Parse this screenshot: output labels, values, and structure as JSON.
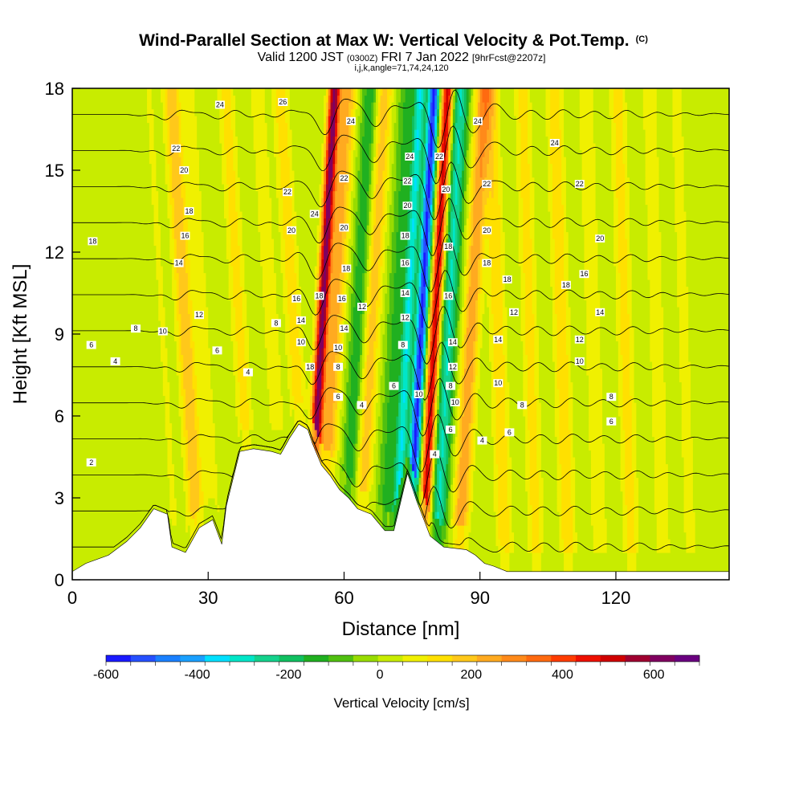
{
  "chart_data": {
    "type": "heatmap",
    "title": "Wind-Parallel Section at Max W: Vertical Velocity & Pot.Temp.",
    "title_mark": "(C)",
    "subtitle_parts": [
      "Valid 1200 JST",
      "(0300Z)",
      "FRI 7 Jan 2022",
      "[9hrFcst@2207z]"
    ],
    "subtitle2": "i,j,k,angle=71,74,24,120",
    "xlabel": "Distance [nm]",
    "ylabel": "Height [Kft MSL]",
    "xlim": [
      0,
      145
    ],
    "ylim": [
      0,
      18
    ],
    "x_ticks": [
      0,
      30,
      60,
      90,
      120
    ],
    "y_ticks": [
      0,
      3,
      6,
      9,
      12,
      15,
      18
    ],
    "colorbar": {
      "label": "Vertical Velocity [cm/s]",
      "min": -600,
      "max": 700,
      "ticks": [
        -600,
        -400,
        -200,
        0,
        200,
        400,
        600
      ],
      "colors": [
        "#1a1aff",
        "#2650ff",
        "#1a80ff",
        "#1aa0ff",
        "#00e0ff",
        "#00e6c8",
        "#14d28c",
        "#10c060",
        "#20b020",
        "#50c010",
        "#98dc00",
        "#c8ec00",
        "#f0f000",
        "#ffe000",
        "#ffc81a",
        "#ffaa20",
        "#ff8a1a",
        "#ff6a10",
        "#ff3c00",
        "#ee1000",
        "#d00000",
        "#a00030",
        "#800060",
        "#6a0080"
      ]
    },
    "wave_features": [
      {
        "x": 20,
        "w": 55
      },
      {
        "x": 25,
        "w": 210
      },
      {
        "x": 29,
        "w": 70
      },
      {
        "x": 37,
        "w": 130
      },
      {
        "x": 44,
        "w": 90
      },
      {
        "x": 49,
        "w": 140
      },
      {
        "x": 55,
        "w": 620
      },
      {
        "x": 58,
        "w": 230
      },
      {
        "x": 63,
        "w": -160
      },
      {
        "x": 66,
        "w": 200
      },
      {
        "x": 71,
        "w": -120
      },
      {
        "x": 74,
        "w": -320
      },
      {
        "x": 77,
        "w": -560
      },
      {
        "x": 80,
        "w": 520
      },
      {
        "x": 83,
        "w": -280
      },
      {
        "x": 88,
        "w": 260
      },
      {
        "x": 94,
        "w": 150
      },
      {
        "x": 101,
        "w": 130
      },
      {
        "x": 108,
        "w": 150
      },
      {
        "x": 115,
        "w": 100
      },
      {
        "x": 122,
        "w": 130
      },
      {
        "x": 129,
        "w": 90
      },
      {
        "x": 135,
        "w": 70
      },
      {
        "x": 141,
        "w": 40
      }
    ],
    "terrain": [
      [
        0,
        0.3
      ],
      [
        3,
        0.6
      ],
      [
        8,
        0.9
      ],
      [
        12,
        1.4
      ],
      [
        15,
        1.9
      ],
      [
        18,
        2.6
      ],
      [
        21,
        2.4
      ],
      [
        22,
        1.2
      ],
      [
        25,
        1.0
      ],
      [
        28,
        1.9
      ],
      [
        31,
        2.2
      ],
      [
        33,
        1.3
      ],
      [
        34,
        2.7
      ],
      [
        37,
        4.7
      ],
      [
        40,
        4.8
      ],
      [
        44,
        4.7
      ],
      [
        46,
        4.6
      ],
      [
        48,
        5.2
      ],
      [
        50,
        5.7
      ],
      [
        52,
        5.5
      ],
      [
        53,
        5.0
      ],
      [
        55,
        4.2
      ],
      [
        57,
        3.8
      ],
      [
        59,
        3.3
      ],
      [
        61,
        3.0
      ],
      [
        63,
        2.6
      ],
      [
        66,
        2.4
      ],
      [
        69,
        1.8
      ],
      [
        71,
        1.8
      ],
      [
        74,
        3.9
      ],
      [
        76,
        2.9
      ],
      [
        79,
        1.6
      ],
      [
        82,
        1.2
      ],
      [
        87,
        1.1
      ],
      [
        89,
        0.9
      ],
      [
        91,
        0.6
      ],
      [
        93,
        0.5
      ],
      [
        96,
        0.3
      ],
      [
        145,
        0.3
      ]
    ],
    "isentropes": [
      2,
      4,
      6,
      8,
      10,
      12,
      14,
      16,
      18,
      20,
      22,
      24,
      26
    ],
    "contour_labels": [
      {
        "text": "2",
        "x": 4.2,
        "y": 4.3
      },
      {
        "text": "4",
        "x": 9.5,
        "y": 8.0
      },
      {
        "text": "6",
        "x": 4.2,
        "y": 8.6
      },
      {
        "text": "8",
        "x": 14,
        "y": 9.2
      },
      {
        "text": "10",
        "x": 20,
        "y": 9.1
      },
      {
        "text": "12",
        "x": 28,
        "y": 9.7
      },
      {
        "text": "14",
        "x": 23.5,
        "y": 11.6
      },
      {
        "text": "16",
        "x": 24.9,
        "y": 12.6
      },
      {
        "text": "18",
        "x": 4.5,
        "y": 12.4
      },
      {
        "text": "18",
        "x": 25.8,
        "y": 13.5
      },
      {
        "text": "20",
        "x": 24.7,
        "y": 15.0
      },
      {
        "text": "22",
        "x": 22.9,
        "y": 15.8
      },
      {
        "text": "24",
        "x": 32.6,
        "y": 17.4
      },
      {
        "text": "26",
        "x": 46.5,
        "y": 17.5
      },
      {
        "text": "6",
        "x": 32,
        "y": 8.4
      },
      {
        "text": "4",
        "x": 38.8,
        "y": 7.6
      },
      {
        "text": "8",
        "x": 45,
        "y": 9.4
      },
      {
        "text": "16",
        "x": 49.5,
        "y": 10.3
      },
      {
        "text": "14",
        "x": 50.5,
        "y": 9.5
      },
      {
        "text": "10",
        "x": 50.5,
        "y": 8.7
      },
      {
        "text": "18",
        "x": 52.5,
        "y": 7.8
      },
      {
        "text": "20",
        "x": 48.4,
        "y": 12.8
      },
      {
        "text": "22",
        "x": 47.5,
        "y": 14.2
      },
      {
        "text": "24",
        "x": 53.5,
        "y": 13.4
      },
      {
        "text": "18",
        "x": 54.5,
        "y": 10.4
      },
      {
        "text": "16",
        "x": 59.5,
        "y": 10.3
      },
      {
        "text": "14",
        "x": 60,
        "y": 9.2
      },
      {
        "text": "12",
        "x": 64,
        "y": 10.0
      },
      {
        "text": "10",
        "x": 58.7,
        "y": 8.5
      },
      {
        "text": "8",
        "x": 58.7,
        "y": 7.8
      },
      {
        "text": "6",
        "x": 58.7,
        "y": 6.7
      },
      {
        "text": "4",
        "x": 63.9,
        "y": 6.4
      },
      {
        "text": "18",
        "x": 60.5,
        "y": 11.4
      },
      {
        "text": "20",
        "x": 60,
        "y": 12.9
      },
      {
        "text": "22",
        "x": 60,
        "y": 14.7
      },
      {
        "text": "24",
        "x": 61.5,
        "y": 16.8
      },
      {
        "text": "6",
        "x": 71,
        "y": 7.1
      },
      {
        "text": "8",
        "x": 73,
        "y": 8.6
      },
      {
        "text": "10",
        "x": 76.5,
        "y": 6.8
      },
      {
        "text": "12",
        "x": 73.5,
        "y": 9.6
      },
      {
        "text": "14",
        "x": 73.5,
        "y": 10.5
      },
      {
        "text": "16",
        "x": 73.5,
        "y": 11.6
      },
      {
        "text": "18",
        "x": 73.5,
        "y": 12.6
      },
      {
        "text": "20",
        "x": 74,
        "y": 13.7
      },
      {
        "text": "22",
        "x": 74,
        "y": 14.6
      },
      {
        "text": "24",
        "x": 74.5,
        "y": 15.5
      },
      {
        "text": "22",
        "x": 81,
        "y": 15.5
      },
      {
        "text": "20",
        "x": 82.5,
        "y": 14.3
      },
      {
        "text": "18",
        "x": 83,
        "y": 12.2
      },
      {
        "text": "16",
        "x": 83,
        "y": 10.4
      },
      {
        "text": "14",
        "x": 84,
        "y": 8.7
      },
      {
        "text": "12",
        "x": 84,
        "y": 7.8
      },
      {
        "text": "10",
        "x": 84.5,
        "y": 6.5
      },
      {
        "text": "8",
        "x": 83.5,
        "y": 7.1
      },
      {
        "text": "6",
        "x": 83.5,
        "y": 5.5
      },
      {
        "text": "4",
        "x": 80,
        "y": 4.6
      },
      {
        "text": "4",
        "x": 90.5,
        "y": 5.1
      },
      {
        "text": "6",
        "x": 96.5,
        "y": 5.4
      },
      {
        "text": "8",
        "x": 99.3,
        "y": 6.4
      },
      {
        "text": "10",
        "x": 94,
        "y": 7.2
      },
      {
        "text": "14",
        "x": 94,
        "y": 8.8
      },
      {
        "text": "12",
        "x": 97.5,
        "y": 9.8
      },
      {
        "text": "18",
        "x": 96,
        "y": 11.0
      },
      {
        "text": "18",
        "x": 91.5,
        "y": 11.6
      },
      {
        "text": "20",
        "x": 91.5,
        "y": 12.8
      },
      {
        "text": "22",
        "x": 91.5,
        "y": 14.5
      },
      {
        "text": "24",
        "x": 89.5,
        "y": 16.8
      },
      {
        "text": "24",
        "x": 106.5,
        "y": 16.0
      },
      {
        "text": "22",
        "x": 112,
        "y": 14.5
      },
      {
        "text": "20",
        "x": 116.5,
        "y": 12.5
      },
      {
        "text": "18",
        "x": 109,
        "y": 10.8
      },
      {
        "text": "16",
        "x": 113,
        "y": 11.2
      },
      {
        "text": "14",
        "x": 116.5,
        "y": 9.8
      },
      {
        "text": "12",
        "x": 112,
        "y": 8.8
      },
      {
        "text": "10",
        "x": 112,
        "y": 8.0
      },
      {
        "text": "8",
        "x": 119,
        "y": 6.7
      },
      {
        "text": "6",
        "x": 119,
        "y": 5.8
      }
    ]
  }
}
